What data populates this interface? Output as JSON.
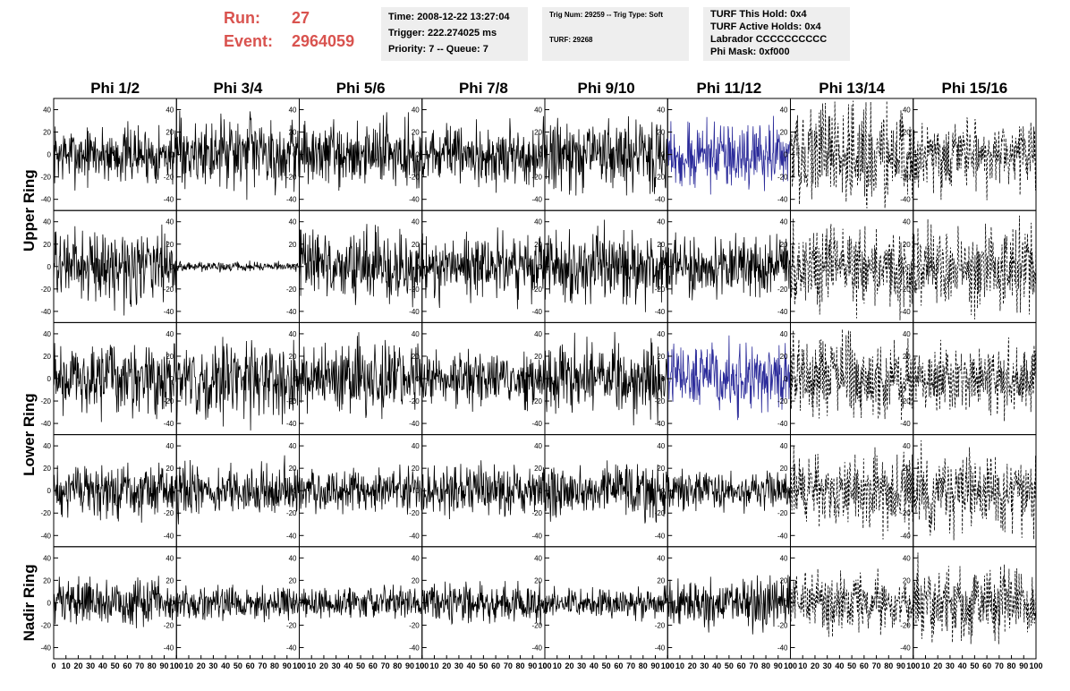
{
  "header": {
    "run_label": "Run:",
    "run_value": "27",
    "event_label": "Event:",
    "event_value": "2964059",
    "time_line": "Time: 2008-12-22 13:27:04",
    "trigger_line": "Trigger: 222.274025 ms",
    "priority_line": "Priority: 7 -- Queue: 7",
    "trig_line": "Trig Num: 29259 -- Trig Type: Soft",
    "turf_line": "TURF: 29268",
    "turf_hold_line": "TURF This Hold: 0x4",
    "turf_active_line": "TURF Active Holds: 0x4",
    "labrador_line": "Labrador CCCCCCCCCC",
    "phi_mask_line": "Phi Mask: 0xf000"
  },
  "chart_data": {
    "type": "line",
    "columns": [
      "Phi 1/2",
      "Phi 3/4",
      "Phi 5/6",
      "Phi 7/8",
      "Phi 9/10",
      "Phi 11/12",
      "Phi 13/14",
      "Phi 15/16"
    ],
    "rows": [
      "Upper Ring",
      "Lower Ring",
      "Nadir Ring"
    ],
    "row_subplots": 5,
    "xlim": [
      0,
      100
    ],
    "ylim": [
      -50,
      50
    ],
    "x_ticks": [
      0,
      10,
      20,
      30,
      40,
      50,
      60,
      70,
      80,
      90,
      100
    ],
    "x_tick_labels": [
      "0",
      "10",
      "20",
      "30",
      "40",
      "50",
      "60",
      "70",
      "80",
      "90",
      "100"
    ],
    "y_ticks": [
      -40,
      -20,
      0,
      20,
      40
    ],
    "y_tick_labels": [
      "-40",
      "-20",
      "0",
      "20",
      "40"
    ],
    "colors": {
      "normal": "#000000",
      "highlight": "#2b2b9a",
      "dashed": "#000000"
    },
    "panels": [
      {
        "row": 0,
        "col": 0,
        "amplitude": 18,
        "style": "solid"
      },
      {
        "row": 0,
        "col": 1,
        "amplitude": 22,
        "style": "solid"
      },
      {
        "row": 0,
        "col": 2,
        "amplitude": 20,
        "style": "solid"
      },
      {
        "row": 0,
        "col": 3,
        "amplitude": 18,
        "style": "solid"
      },
      {
        "row": 0,
        "col": 4,
        "amplitude": 22,
        "style": "solid"
      },
      {
        "row": 0,
        "col": 5,
        "amplitude": 20,
        "style": "highlight"
      },
      {
        "row": 0,
        "col": 6,
        "amplitude": 30,
        "style": "dashed"
      },
      {
        "row": 0,
        "col": 7,
        "amplitude": 22,
        "style": "dashed"
      },
      {
        "row": 1,
        "col": 0,
        "amplitude": 22,
        "style": "solid"
      },
      {
        "row": 1,
        "col": 1,
        "amplitude": 3,
        "style": "solid"
      },
      {
        "row": 1,
        "col": 2,
        "amplitude": 22,
        "style": "solid"
      },
      {
        "row": 1,
        "col": 3,
        "amplitude": 20,
        "style": "solid"
      },
      {
        "row": 1,
        "col": 4,
        "amplitude": 22,
        "style": "solid"
      },
      {
        "row": 1,
        "col": 5,
        "amplitude": 18,
        "style": "solid"
      },
      {
        "row": 1,
        "col": 6,
        "amplitude": 25,
        "style": "dashed"
      },
      {
        "row": 1,
        "col": 7,
        "amplitude": 28,
        "style": "dashed"
      },
      {
        "row": 2,
        "col": 0,
        "amplitude": 22,
        "style": "solid"
      },
      {
        "row": 2,
        "col": 1,
        "amplitude": 24,
        "style": "solid"
      },
      {
        "row": 2,
        "col": 2,
        "amplitude": 22,
        "style": "solid"
      },
      {
        "row": 2,
        "col": 3,
        "amplitude": 16,
        "style": "solid"
      },
      {
        "row": 2,
        "col": 4,
        "amplitude": 22,
        "style": "solid"
      },
      {
        "row": 2,
        "col": 5,
        "amplitude": 22,
        "style": "highlight"
      },
      {
        "row": 2,
        "col": 6,
        "amplitude": 25,
        "style": "dashed"
      },
      {
        "row": 2,
        "col": 7,
        "amplitude": 22,
        "style": "dashed"
      },
      {
        "row": 3,
        "col": 0,
        "amplitude": 16,
        "style": "solid"
      },
      {
        "row": 3,
        "col": 1,
        "amplitude": 16,
        "style": "solid"
      },
      {
        "row": 3,
        "col": 2,
        "amplitude": 14,
        "style": "solid"
      },
      {
        "row": 3,
        "col": 3,
        "amplitude": 16,
        "style": "solid"
      },
      {
        "row": 3,
        "col": 4,
        "amplitude": 16,
        "style": "solid"
      },
      {
        "row": 3,
        "col": 5,
        "amplitude": 12,
        "style": "solid"
      },
      {
        "row": 3,
        "col": 6,
        "amplitude": 24,
        "style": "dashed"
      },
      {
        "row": 3,
        "col": 7,
        "amplitude": 24,
        "style": "dashed"
      },
      {
        "row": 4,
        "col": 0,
        "amplitude": 14,
        "style": "solid"
      },
      {
        "row": 4,
        "col": 1,
        "amplitude": 10,
        "style": "solid"
      },
      {
        "row": 4,
        "col": 2,
        "amplitude": 10,
        "style": "solid"
      },
      {
        "row": 4,
        "col": 3,
        "amplitude": 12,
        "style": "solid"
      },
      {
        "row": 4,
        "col": 4,
        "amplitude": 9,
        "style": "solid"
      },
      {
        "row": 4,
        "col": 5,
        "amplitude": 15,
        "style": "solid"
      },
      {
        "row": 4,
        "col": 6,
        "amplitude": 18,
        "style": "dashed"
      },
      {
        "row": 4,
        "col": 7,
        "amplitude": 24,
        "style": "dashed"
      }
    ]
  }
}
